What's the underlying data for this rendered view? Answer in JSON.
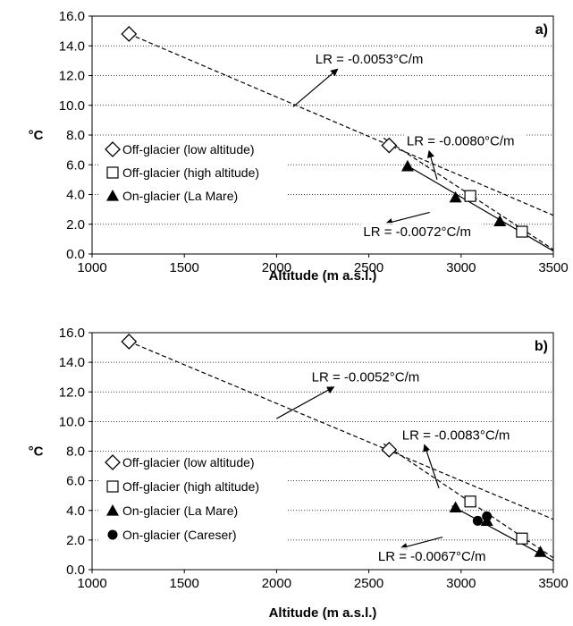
{
  "chart_data": [
    {
      "type": "scatter",
      "panel_label": "a)",
      "xlabel": "Altitude (m a.s.l.)",
      "ylabel": "°C",
      "xlim": [
        1000,
        3500
      ],
      "ylim": [
        0,
        16
      ],
      "x_ticks": [
        "1000",
        "1500",
        "2000",
        "2500",
        "3000",
        "3500"
      ],
      "y_ticks": [
        "0.0",
        "2.0",
        "4.0",
        "6.0",
        "8.0",
        "10.0",
        "12.0",
        "14.0",
        "16.0"
      ],
      "grid": "horizontal dotted",
      "legend_position": "left-middle",
      "series": [
        {
          "name": "Off-glacier (low altitude)",
          "marker": "diamond-open",
          "points": [
            [
              1200,
              14.8
            ],
            [
              2610,
              7.3
            ]
          ]
        },
        {
          "name": "Off-glacier (high altitude)",
          "marker": "square-open",
          "points": [
            [
              3050,
              3.9
            ],
            [
              3330,
              1.5
            ]
          ]
        },
        {
          "name": "On-glacier (La Mare)",
          "marker": "triangle-filled",
          "points": [
            [
              2710,
              5.9
            ],
            [
              2970,
              3.8
            ],
            [
              3210,
              2.2
            ]
          ]
        }
      ],
      "trendlines": [
        {
          "x": [
            1200,
            3500
          ],
          "y": [
            14.8,
            2.6
          ],
          "style": "dashed"
        },
        {
          "x": [
            2580,
            3500
          ],
          "y": [
            7.8,
            0.3
          ],
          "style": "dashed"
        },
        {
          "x": [
            2700,
            3500
          ],
          "y": [
            6.0,
            0.2
          ],
          "style": "solid"
        }
      ],
      "annotations": [
        {
          "text": "LR = -0.0053°C/m",
          "x": 2210,
          "y": 12.8,
          "arrow_to": [
            2090,
            9.9
          ]
        },
        {
          "text": "LR = -0.0080°C/m",
          "x": 2705,
          "y": 7.3,
          "arrow_to": [
            2870,
            5.0
          ]
        },
        {
          "text": "LR = -0.0072°C/m",
          "x": 2470,
          "y": 1.2,
          "arrow_to": [
            2830,
            2.8
          ]
        }
      ]
    },
    {
      "type": "scatter",
      "panel_label": "b)",
      "xlabel": "Altitude (m a.s.l.)",
      "ylabel": "°C",
      "xlim": [
        1000,
        3500
      ],
      "ylim": [
        0,
        16
      ],
      "x_ticks": [
        "1000",
        "1500",
        "2000",
        "2500",
        "3000",
        "3500"
      ],
      "y_ticks": [
        "0.0",
        "2.0",
        "4.0",
        "6.0",
        "8.0",
        "10.0",
        "12.0",
        "14.0",
        "16.0"
      ],
      "grid": "horizontal dotted",
      "legend_position": "left-bottom",
      "series": [
        {
          "name": "Off-glacier (low altitude)",
          "marker": "diamond-open",
          "points": [
            [
              1200,
              15.4
            ],
            [
              2610,
              8.1
            ]
          ]
        },
        {
          "name": "Off-glacier (high altitude)",
          "marker": "square-open",
          "points": [
            [
              3050,
              4.6
            ],
            [
              3330,
              2.1
            ]
          ]
        },
        {
          "name": "On-glacier (La Mare)",
          "marker": "triangle-filled",
          "points": [
            [
              2970,
              4.2
            ],
            [
              3140,
              3.3
            ],
            [
              3430,
              1.2
            ]
          ]
        },
        {
          "name": "On-glacier (Careser)",
          "marker": "circle-filled",
          "points": [
            [
              3090,
              3.3
            ],
            [
              3140,
              3.6
            ]
          ]
        }
      ],
      "trendlines": [
        {
          "x": [
            1200,
            3500
          ],
          "y": [
            15.4,
            3.4
          ],
          "style": "dashed"
        },
        {
          "x": [
            2580,
            3500
          ],
          "y": [
            8.5,
            0.8
          ],
          "style": "dashed"
        },
        {
          "x": [
            2950,
            3500
          ],
          "y": [
            4.3,
            0.6
          ],
          "style": "solid"
        }
      ],
      "annotations": [
        {
          "text": "LR = -0.0052°C/m",
          "x": 2190,
          "y": 12.7,
          "arrow_to": [
            2000,
            10.2
          ]
        },
        {
          "text": "LR = -0.0083°C/m",
          "x": 2680,
          "y": 8.8,
          "arrow_to": [
            2880,
            5.5
          ]
        },
        {
          "text": "LR = -0.0067°C/m",
          "x": 2550,
          "y": 0.6,
          "arrow_to": [
            2900,
            2.2
          ]
        }
      ]
    }
  ]
}
